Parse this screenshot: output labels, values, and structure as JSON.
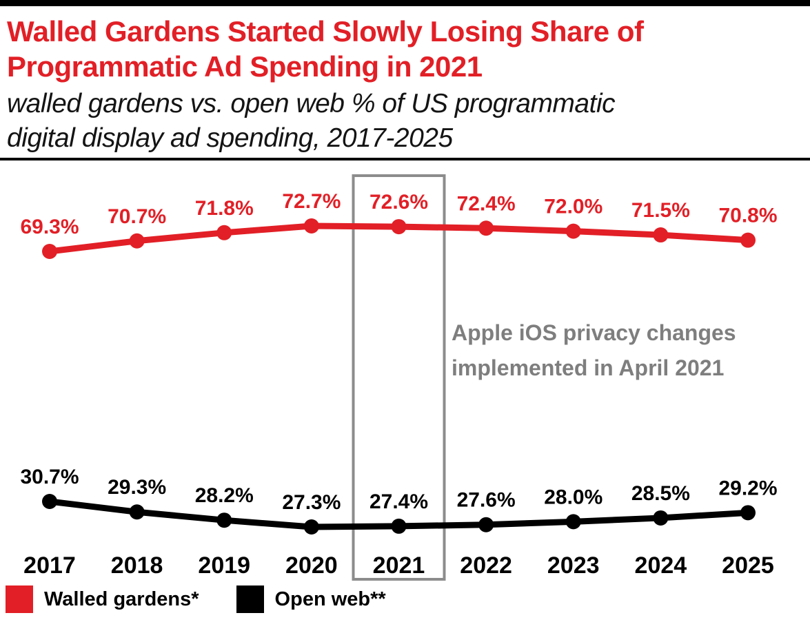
{
  "header": {
    "title_line1": "Walled Gardens Started Slowly Losing Share of",
    "title_line2": "Programmatic Ad Spending in 2021",
    "subtitle_line1": "walled gardens vs. open web % of US programmatic",
    "subtitle_line2": "digital display ad spending, 2017-2025"
  },
  "annotation": {
    "line1": "Apple iOS privacy changes",
    "line2": "implemented in April 2021"
  },
  "legend": [
    {
      "label": "Walled gardens*",
      "color": "#e21f26"
    },
    {
      "label": "Open web**",
      "color": "#000000"
    }
  ],
  "chart_data": {
    "type": "line",
    "title": "Walled Gardens Started Slowly Losing Share of Programmatic Ad Spending in 2021",
    "subtitle": "walled gardens vs. open web % of US programmatic digital display ad spending, 2017-2025",
    "categories": [
      "2017",
      "2018",
      "2019",
      "2020",
      "2021",
      "2022",
      "2023",
      "2024",
      "2025"
    ],
    "series": [
      {
        "name": "Walled gardens*",
        "color": "#e21f26",
        "values": [
          69.3,
          70.7,
          71.8,
          72.7,
          72.6,
          72.4,
          72.0,
          71.5,
          70.8
        ]
      },
      {
        "name": "Open web**",
        "color": "#000000",
        "values": [
          30.7,
          29.3,
          28.2,
          27.3,
          27.4,
          27.6,
          28.0,
          28.5,
          29.2
        ]
      }
    ],
    "value_suffix": "%",
    "highlight_category": "2021",
    "highlight_box_color": "#8c8c8c",
    "annotation": "Apple iOS privacy changes implemented in April 2021",
    "legend_position": "bottom",
    "grid": false
  }
}
